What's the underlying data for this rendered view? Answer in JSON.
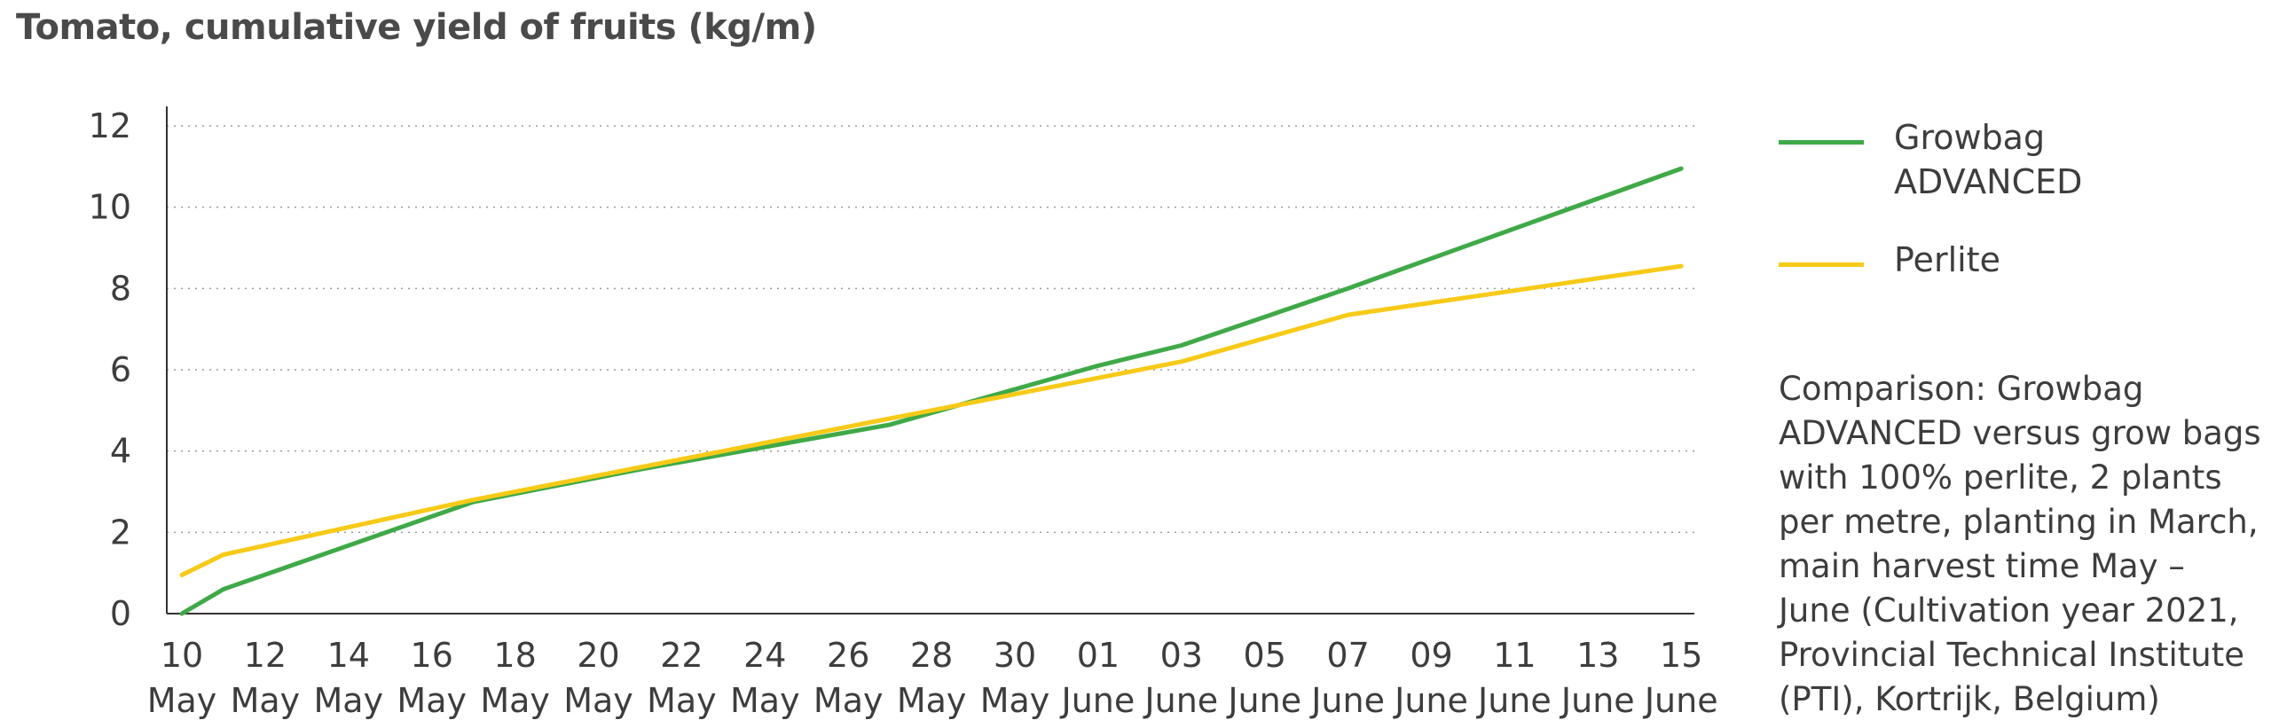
{
  "chart_data": {
    "type": "line",
    "title": "Tomato, cumulative yield of fruits (kg/m)",
    "xlabel": "",
    "ylabel": "",
    "x_ticks": [
      {
        "day": "10",
        "month": "May"
      },
      {
        "day": "12",
        "month": "May"
      },
      {
        "day": "14",
        "month": "May"
      },
      {
        "day": "16",
        "month": "May"
      },
      {
        "day": "18",
        "month": "May"
      },
      {
        "day": "20",
        "month": "May"
      },
      {
        "day": "22",
        "month": "May"
      },
      {
        "day": "24",
        "month": "May"
      },
      {
        "day": "26",
        "month": "May"
      },
      {
        "day": "28",
        "month": "May"
      },
      {
        "day": "30",
        "month": "May"
      },
      {
        "day": "01",
        "month": "June"
      },
      {
        "day": "03",
        "month": "June"
      },
      {
        "day": "05",
        "month": "June"
      },
      {
        "day": "07",
        "month": "June"
      },
      {
        "day": "09",
        "month": "June"
      },
      {
        "day": "11",
        "month": "June"
      },
      {
        "day": "13",
        "month": "June"
      },
      {
        "day": "15",
        "month": "June"
      }
    ],
    "ylim": [
      0,
      12
    ],
    "yticks": [
      0,
      2,
      4,
      6,
      8,
      10,
      12
    ],
    "grid": "horizontal-dotted",
    "legend_position": "right",
    "series": [
      {
        "name": "Growbag ADVANCED",
        "color": "#3fa948",
        "points": [
          {
            "x": "2021-05-10",
            "y": 0.0
          },
          {
            "x": "2021-05-11",
            "y": 0.6
          },
          {
            "x": "2021-05-17",
            "y": 2.75
          },
          {
            "x": "2021-05-21",
            "y": 3.55
          },
          {
            "x": "2021-05-27",
            "y": 4.65
          },
          {
            "x": "2021-06-01",
            "y": 6.1
          },
          {
            "x": "2021-06-03",
            "y": 6.6
          },
          {
            "x": "2021-06-07",
            "y": 8.0
          },
          {
            "x": "2021-06-15",
            "y": 10.95
          }
        ]
      },
      {
        "name": "Perlite",
        "color": "#f7ca18",
        "points": [
          {
            "x": "2021-05-10",
            "y": 0.95
          },
          {
            "x": "2021-05-11",
            "y": 1.45
          },
          {
            "x": "2021-05-17",
            "y": 2.8
          },
          {
            "x": "2021-05-21",
            "y": 3.6
          },
          {
            "x": "2021-05-27",
            "y": 4.8
          },
          {
            "x": "2021-06-01",
            "y": 5.8
          },
          {
            "x": "2021-06-03",
            "y": 6.2
          },
          {
            "x": "2021-06-07",
            "y": 7.35
          },
          {
            "x": "2021-06-15",
            "y": 8.55
          }
        ]
      }
    ]
  },
  "legend": {
    "items": [
      {
        "label": "Growbag ADVANCED",
        "color": "#3fa948"
      },
      {
        "label": "Perlite",
        "color": "#f7ca18"
      }
    ]
  },
  "note": "Comparison: Growbag ADVANCED versus grow bags with 100% perlite, 2 plants per metre, planting in March, main harvest time May – June (Cultivation year 2021, Provincial Technical Institute (PTI), Kortrijk, Belgium)"
}
